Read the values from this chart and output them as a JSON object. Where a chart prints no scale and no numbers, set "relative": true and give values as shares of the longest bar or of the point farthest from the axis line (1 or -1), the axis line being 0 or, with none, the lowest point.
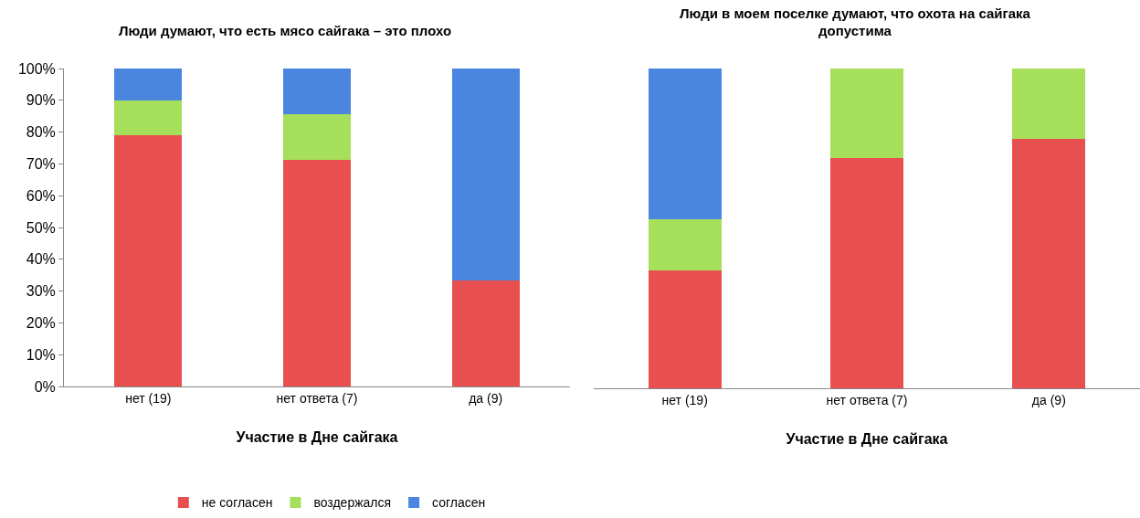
{
  "chart_data": [
    {
      "type": "bar",
      "title": "Люди думают, что есть мясо сайгака – это плохо",
      "xlabel": "Участие в Дне сайгака",
      "categories": [
        "нет (19)",
        "нет ответа (7)",
        "да (9)"
      ],
      "stacked": true,
      "series": [
        {
          "name": "не согласен",
          "color": "#e8504f",
          "values": [
            79,
            71.4,
            33.3
          ]
        },
        {
          "name": "воздержался",
          "color": "#a6e05a",
          "values": [
            11,
            14.3,
            0
          ]
        },
        {
          "name": "согласен",
          "color": "#4a86e0",
          "values": [
            10,
            14.3,
            66.7
          ]
        }
      ],
      "ylim": [
        0,
        100
      ],
      "yticks": [
        {
          "value": 0,
          "label": "0%"
        },
        {
          "value": 10,
          "label": "10%"
        },
        {
          "value": 20,
          "label": "20%"
        },
        {
          "value": 30,
          "label": "30%"
        },
        {
          "value": 40,
          "label": "40%"
        },
        {
          "value": 50,
          "label": "50%"
        },
        {
          "value": 60,
          "label": "60%"
        },
        {
          "value": 70,
          "label": "70%"
        },
        {
          "value": 80,
          "label": "80%"
        },
        {
          "value": 90,
          "label": "90%"
        },
        {
          "value": 100,
          "label": "100%"
        }
      ],
      "legend": "bottom"
    },
    {
      "type": "bar",
      "title": "Люди в моем поселке думают, что охота на сайгака допустима",
      "xlabel": "Участие в Дне сайгака",
      "categories": [
        "нет (19)",
        "нет ответа (7)",
        "да (9)"
      ],
      "stacked": true,
      "relative": true,
      "tick_labels": "x",
      "series": [
        {
          "color": "#e8504f",
          "values": [
            0.37,
            0.72,
            0.78
          ]
        },
        {
          "color": "#a6e05a",
          "values": [
            0.16,
            0.28,
            0.22
          ]
        },
        {
          "color": "#4a86e0",
          "values": [
            0.47,
            0,
            0
          ]
        }
      ]
    }
  ]
}
